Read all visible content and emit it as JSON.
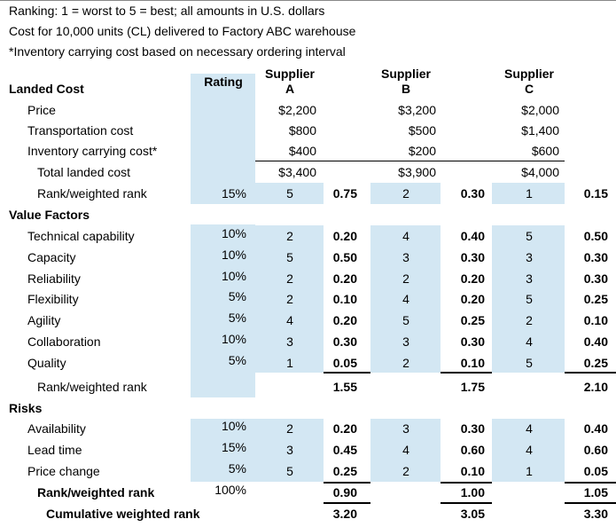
{
  "notes": [
    "Ranking: 1 = worst to 5 = best; all amounts in U.S. dollars",
    "Cost for 10,000 units (CL) delivered to Factory ABC warehouse",
    "*Inventory carrying cost based on necessary ordering interval"
  ],
  "table": {
    "header": {
      "rating": "Rating",
      "suppliers": [
        [
          "Supplier",
          "A"
        ],
        [
          "Supplier",
          "B"
        ],
        [
          "Supplier",
          "C"
        ]
      ]
    },
    "landed_cost": {
      "title": "Landed Cost",
      "costs": [
        {
          "label": "Price",
          "values": [
            "$2,200",
            "$3,200",
            "$2,000"
          ]
        },
        {
          "label": "Transportation cost",
          "values": [
            "$800",
            "$500",
            "$1,400"
          ]
        },
        {
          "label": "Inventory carrying cost*",
          "values": [
            "$400",
            "$200",
            "$600"
          ]
        }
      ],
      "total": {
        "label": "Total landed cost",
        "values": [
          "$3,400",
          "$3,900",
          "$4,000"
        ]
      },
      "rank": {
        "label": "Rank/weighted rank",
        "rating": "15%",
        "cells": [
          "5",
          "0.75",
          "2",
          "0.30",
          "1",
          "0.15"
        ]
      }
    },
    "value_factors": {
      "title": "Value Factors",
      "rows": [
        {
          "label": "Technical capability",
          "rating": "10%",
          "cells": [
            "2",
            "0.20",
            "4",
            "0.40",
            "5",
            "0.50"
          ]
        },
        {
          "label": "Capacity",
          "rating": "10%",
          "cells": [
            "5",
            "0.50",
            "3",
            "0.30",
            "3",
            "0.30"
          ]
        },
        {
          "label": "Reliability",
          "rating": "10%",
          "cells": [
            "2",
            "0.20",
            "2",
            "0.20",
            "3",
            "0.30"
          ]
        },
        {
          "label": "Flexibility",
          "rating": "5%",
          "cells": [
            "2",
            "0.10",
            "4",
            "0.20",
            "5",
            "0.25"
          ]
        },
        {
          "label": "Agility",
          "rating": "5%",
          "cells": [
            "4",
            "0.20",
            "5",
            "0.25",
            "2",
            "0.10"
          ]
        },
        {
          "label": "Collaboration",
          "rating": "10%",
          "cells": [
            "3",
            "0.30",
            "3",
            "0.30",
            "4",
            "0.40"
          ]
        },
        {
          "label": "Quality",
          "rating": "5%",
          "cells": [
            "1",
            "0.05",
            "2",
            "0.10",
            "5",
            "0.25"
          ]
        }
      ],
      "rank": {
        "label": "Rank/weighted rank",
        "cells": [
          "1.55",
          "1.75",
          "2.10"
        ]
      }
    },
    "risks": {
      "title": "Risks",
      "rows": [
        {
          "label": "Availability",
          "rating": "10%",
          "cells": [
            "2",
            "0.20",
            "3",
            "0.30",
            "4",
            "0.40"
          ]
        },
        {
          "label": "Lead time",
          "rating": "15%",
          "cells": [
            "3",
            "0.45",
            "4",
            "0.60",
            "4",
            "0.60"
          ]
        },
        {
          "label": "Price change",
          "rating": "5%",
          "cells": [
            "5",
            "0.25",
            "2",
            "0.10",
            "1",
            "0.05"
          ]
        }
      ],
      "rank": {
        "label": "Rank/weighted rank",
        "rating": "100%",
        "cells": [
          "0.90",
          "1.00",
          "1.05"
        ]
      }
    },
    "cumulative": {
      "label": "Cumulative weighted rank",
      "cells": [
        "3.20",
        "3.05",
        "3.30"
      ]
    }
  }
}
